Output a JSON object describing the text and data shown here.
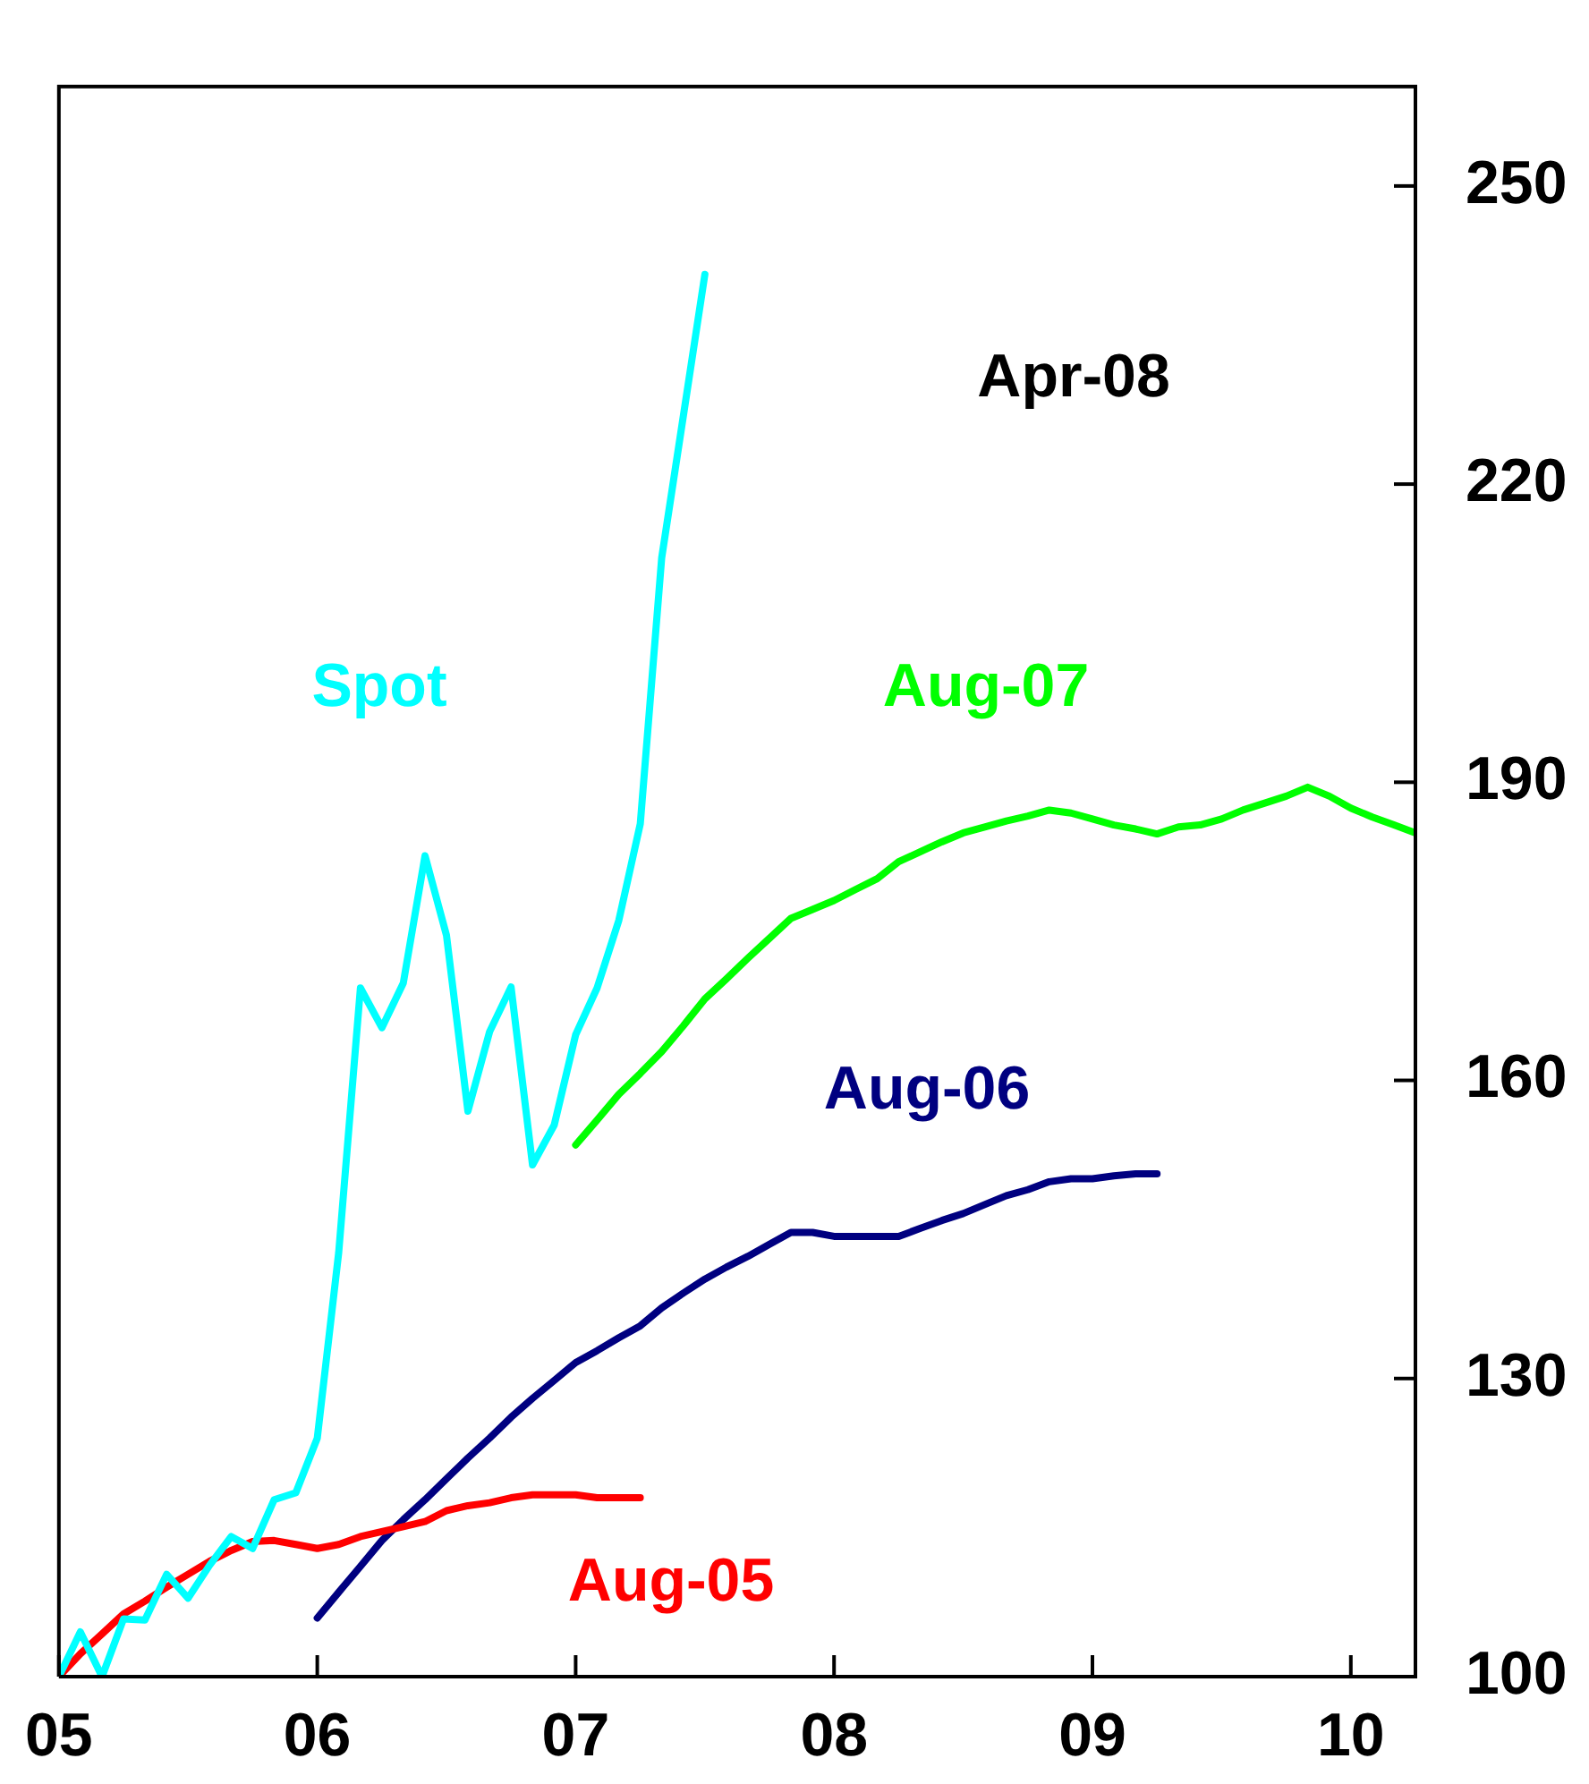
{
  "chart_data": {
    "type": "line",
    "xlim": [
      2005,
      2010.25
    ],
    "xticks": [
      {
        "value": 2005,
        "label": "05"
      },
      {
        "value": 2006,
        "label": "06"
      },
      {
        "value": 2007,
        "label": "07"
      },
      {
        "value": 2008,
        "label": "08"
      },
      {
        "value": 2009,
        "label": "09"
      },
      {
        "value": 2010,
        "label": "10"
      }
    ],
    "ylim": [
      100,
      260
    ],
    "yticks": [
      100,
      130,
      160,
      190,
      220,
      250
    ],
    "grid": false,
    "line_style": "solid",
    "annotations": [
      "Apr-08"
    ],
    "series": [
      {
        "name": "Spot",
        "color": "#00ffff",
        "x": [
          2005,
          2005.083,
          2005.167,
          2005.25,
          2005.333,
          2005.417,
          2005.5,
          2005.583,
          2005.667,
          2005.75,
          2005.833,
          2005.917,
          2006,
          2006.083,
          2006.167,
          2006.25,
          2006.333,
          2006.417,
          2006.5,
          2006.583,
          2006.667,
          2006.75,
          2006.833,
          2006.917,
          2007,
          2007.083,
          2007.167,
          2007.25,
          2007.333,
          2007.417,
          2007.5
        ],
        "values": [
          100,
          104.5,
          100,
          105.8,
          105.7,
          110.3,
          107.9,
          111.2,
          114.1,
          112.9,
          117.8,
          118.5,
          124,
          142.7,
          169.3,
          165.3,
          169.8,
          182.6,
          174.6,
          156.9,
          164.9,
          169.4,
          151.5,
          155.5,
          164.6,
          169.3,
          176.1,
          185.8,
          212.6,
          226.9,
          241.1
        ]
      },
      {
        "name": "Aug-05",
        "color": "#ff0000",
        "x": [
          2005,
          2005.083,
          2005.167,
          2005.25,
          2005.333,
          2005.417,
          2005.5,
          2005.583,
          2005.667,
          2005.75,
          2005.833,
          2005.917,
          2006,
          2006.083,
          2006.167,
          2006.25,
          2006.333,
          2006.417,
          2006.5,
          2006.583,
          2006.667,
          2006.75,
          2006.833,
          2006.917,
          2007,
          2007.083,
          2007.167,
          2007.25
        ],
        "values": [
          100,
          102.3,
          104.3,
          106.3,
          107.6,
          109,
          110.3,
          111.6,
          112.7,
          113.6,
          113.7,
          113.3,
          112.9,
          113.3,
          114.1,
          114.6,
          115.1,
          115.6,
          116.7,
          117.2,
          117.5,
          118,
          118.3,
          118.3,
          118.3,
          118,
          118,
          118
        ]
      },
      {
        "name": "Aug-06",
        "color": "#000080",
        "x": [
          2006,
          2006.083,
          2006.167,
          2006.25,
          2006.333,
          2006.417,
          2006.5,
          2006.583,
          2006.667,
          2006.75,
          2006.833,
          2006.917,
          2007,
          2007.083,
          2007.167,
          2007.25,
          2007.333,
          2007.417,
          2007.5,
          2007.583,
          2007.667,
          2007.75,
          2007.833,
          2007.917,
          2008,
          2008.083,
          2008.167,
          2008.25,
          2008.333,
          2008.417,
          2008.5,
          2008.583,
          2008.667,
          2008.75,
          2008.833,
          2008.917,
          2009,
          2009.083,
          2009.167,
          2009.25
        ],
        "values": [
          105.9,
          108.5,
          111.1,
          113.7,
          115.8,
          117.8,
          119.9,
          122,
          124,
          126.1,
          128,
          129.8,
          131.6,
          132.8,
          134.1,
          135.3,
          137.1,
          138.6,
          140,
          141.2,
          142.3,
          143.5,
          144.7,
          144.7,
          144.3,
          144.3,
          144.3,
          144.3,
          145.1,
          145.9,
          146.6,
          147.5,
          148.4,
          149,
          149.8,
          150.1,
          150.1,
          150.4,
          150.6,
          150.6
        ]
      },
      {
        "name": "Aug-07",
        "color": "#00ff00",
        "x": [
          2007,
          2007.083,
          2007.167,
          2007.25,
          2007.333,
          2007.417,
          2007.5,
          2007.583,
          2007.667,
          2007.75,
          2007.833,
          2007.917,
          2008,
          2008.083,
          2008.167,
          2008.25,
          2008.333,
          2008.417,
          2008.5,
          2008.583,
          2008.667,
          2008.75,
          2008.833,
          2008.917,
          2009,
          2009.083,
          2009.167,
          2009.25,
          2009.333,
          2009.417,
          2009.5,
          2009.583,
          2009.667,
          2009.75,
          2009.833,
          2009.917,
          2010,
          2010.083,
          2010.167,
          2010.25
        ],
        "values": [
          153.5,
          156,
          158.6,
          160.7,
          162.9,
          165.5,
          168.2,
          170.2,
          172.3,
          174.3,
          176.3,
          177.2,
          178.1,
          179.2,
          180.3,
          182,
          183,
          184,
          184.9,
          185.5,
          186.1,
          186.6,
          187.2,
          186.9,
          186.3,
          185.7,
          185.3,
          184.8,
          185.5,
          185.7,
          186.3,
          187.2,
          187.9,
          188.6,
          189.5,
          188.6,
          187.4,
          186.5,
          185.7,
          184.9
        ]
      }
    ]
  }
}
